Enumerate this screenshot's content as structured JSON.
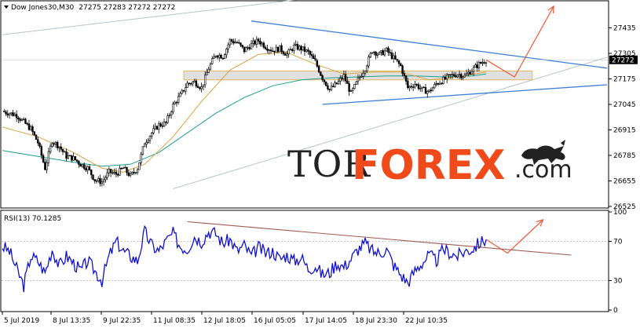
{
  "chart_data": [
    {
      "type": "candlestick",
      "symbol_line": "Dow Jones30,M30",
      "ohlc_readout": "27275 27283 27272 27272",
      "current_price": 27272,
      "ylim": [
        26525,
        27565
      ],
      "y_ticks": [
        "27435",
        "27305",
        "27175",
        "27045",
        "26915",
        "26785",
        "26655",
        "26525"
      ],
      "x_ticks": [
        "5 Jul 2019",
        "8 Jul 13:35",
        "9 Jul 22:35",
        "11 Jul 08:35",
        "12 Jul 18:05",
        "16 Jul 05:05",
        "17 Jul 14:05",
        "18 Jul 23:30",
        "22 Jul 10:35"
      ],
      "price_path": [
        [
          0,
          27010
        ],
        [
          4,
          26990
        ],
        [
          8,
          26920
        ],
        [
          10,
          26850
        ],
        [
          12,
          26720
        ],
        [
          14,
          26860
        ],
        [
          16,
          26830
        ],
        [
          18,
          26780
        ],
        [
          20,
          26770
        ],
        [
          22,
          26740
        ],
        [
          24,
          26720
        ],
        [
          26,
          26660
        ],
        [
          28,
          26650
        ],
        [
          30,
          26700
        ],
        [
          32,
          26690
        ],
        [
          34,
          26720
        ],
        [
          36,
          26680
        ],
        [
          38,
          26720
        ],
        [
          40,
          26850
        ],
        [
          42,
          26900
        ],
        [
          44,
          26940
        ],
        [
          46,
          26950
        ],
        [
          48,
          27040
        ],
        [
          50,
          27090
        ],
        [
          52,
          27150
        ],
        [
          54,
          27160
        ],
        [
          56,
          27130
        ],
        [
          58,
          27230
        ],
        [
          60,
          27300
        ],
        [
          62,
          27290
        ],
        [
          64,
          27370
        ],
        [
          66,
          27360
        ],
        [
          68,
          27320
        ],
        [
          70,
          27350
        ],
        [
          72,
          27370
        ],
        [
          74,
          27340
        ],
        [
          76,
          27320
        ],
        [
          78,
          27330
        ],
        [
          80,
          27300
        ],
        [
          82,
          27340
        ],
        [
          84,
          27330
        ],
        [
          86,
          27310
        ],
        [
          88,
          27260
        ],
        [
          90,
          27180
        ],
        [
          92,
          27120
        ],
        [
          94,
          27150
        ],
        [
          96,
          27190
        ],
        [
          98,
          27100
        ],
        [
          100,
          27170
        ],
        [
          102,
          27230
        ],
        [
          104,
          27320
        ],
        [
          106,
          27300
        ],
        [
          108,
          27320
        ],
        [
          110,
          27280
        ],
        [
          112,
          27240
        ],
        [
          114,
          27130
        ],
        [
          116,
          27150
        ],
        [
          118,
          27120
        ],
        [
          120,
          27110
        ],
        [
          122,
          27150
        ],
        [
          124,
          27170
        ],
        [
          126,
          27190
        ],
        [
          128,
          27200
        ],
        [
          130,
          27190
        ],
        [
          132,
          27220
        ],
        [
          134,
          27250
        ],
        [
          136,
          27272
        ]
      ],
      "ma_fast": [
        [
          0,
          26930
        ],
        [
          10,
          26880
        ],
        [
          20,
          26800
        ],
        [
          28,
          26720
        ],
        [
          34,
          26700
        ],
        [
          40,
          26740
        ],
        [
          48,
          26880
        ],
        [
          56,
          27060
        ],
        [
          64,
          27220
        ],
        [
          72,
          27300
        ],
        [
          80,
          27310
        ],
        [
          88,
          27250
        ],
        [
          96,
          27200
        ],
        [
          104,
          27210
        ],
        [
          112,
          27210
        ],
        [
          120,
          27170
        ],
        [
          128,
          27185
        ],
        [
          136,
          27210
        ]
      ],
      "ma_slow": [
        [
          0,
          26810
        ],
        [
          10,
          26780
        ],
        [
          20,
          26750
        ],
        [
          28,
          26730
        ],
        [
          36,
          26740
        ],
        [
          44,
          26800
        ],
        [
          52,
          26900
        ],
        [
          60,
          27000
        ],
        [
          68,
          27080
        ],
        [
          76,
          27140
        ],
        [
          84,
          27170
        ],
        [
          92,
          27180
        ],
        [
          100,
          27185
        ],
        [
          108,
          27190
        ],
        [
          116,
          27190
        ],
        [
          124,
          27185
        ],
        [
          132,
          27190
        ],
        [
          136,
          27200
        ]
      ],
      "resistance_zone": [
        27170,
        27215
      ],
      "trendline_upper": [
        [
          70,
          27470
        ],
        [
          170,
          27230
        ]
      ],
      "trendline_lower": [
        [
          90,
          27045
        ],
        [
          170,
          27145
        ]
      ],
      "channel_upper": [
        [
          0,
          27400
        ],
        [
          93,
          27600
        ]
      ],
      "channel_lower": [
        [
          48,
          26615
        ],
        [
          170,
          27285
        ]
      ],
      "forecast_path": [
        [
          136,
          27272
        ],
        [
          144,
          27185
        ],
        [
          155,
          27545
        ]
      ]
    },
    {
      "type": "line",
      "indicator_label": "RSI(13) 70.1285",
      "ylim": [
        0,
        100
      ],
      "y_ticks": [
        "100",
        "70",
        "30",
        "0"
      ],
      "levels": [
        70,
        30
      ],
      "values": [
        [
          0,
          65
        ],
        [
          2,
          60
        ],
        [
          4,
          42
        ],
        [
          6,
          25
        ],
        [
          8,
          55
        ],
        [
          10,
          50
        ],
        [
          12,
          38
        ],
        [
          14,
          62
        ],
        [
          16,
          45
        ],
        [
          18,
          55
        ],
        [
          20,
          48
        ],
        [
          22,
          40
        ],
        [
          24,
          50
        ],
        [
          26,
          40
        ],
        [
          28,
          30
        ],
        [
          30,
          55
        ],
        [
          32,
          70
        ],
        [
          34,
          60
        ],
        [
          36,
          55
        ],
        [
          38,
          50
        ],
        [
          40,
          80
        ],
        [
          42,
          66
        ],
        [
          44,
          60
        ],
        [
          46,
          70
        ],
        [
          48,
          78
        ],
        [
          50,
          65
        ],
        [
          52,
          62
        ],
        [
          54,
          75
        ],
        [
          56,
          70
        ],
        [
          58,
          80
        ],
        [
          60,
          78
        ],
        [
          62,
          68
        ],
        [
          64,
          72
        ],
        [
          66,
          60
        ],
        [
          68,
          66
        ],
        [
          70,
          55
        ],
        [
          72,
          64
        ],
        [
          74,
          58
        ],
        [
          76,
          60
        ],
        [
          78,
          52
        ],
        [
          80,
          56
        ],
        [
          82,
          50
        ],
        [
          84,
          54
        ],
        [
          86,
          42
        ],
        [
          88,
          45
        ],
        [
          90,
          36
        ],
        [
          92,
          38
        ],
        [
          94,
          48
        ],
        [
          96,
          44
        ],
        [
          98,
          52
        ],
        [
          100,
          62
        ],
        [
          102,
          68
        ],
        [
          104,
          60
        ],
        [
          106,
          58
        ],
        [
          108,
          62
        ],
        [
          110,
          46
        ],
        [
          112,
          36
        ],
        [
          114,
          28
        ],
        [
          116,
          40
        ],
        [
          118,
          48
        ],
        [
          120,
          56
        ],
        [
          122,
          50
        ],
        [
          124,
          62
        ],
        [
          126,
          58
        ],
        [
          128,
          55
        ],
        [
          130,
          60
        ],
        [
          132,
          62
        ],
        [
          134,
          68
        ],
        [
          136,
          72
        ]
      ],
      "trendline": [
        [
          52,
          90
        ],
        [
          160,
          56
        ]
      ],
      "forecast_path": [
        [
          136,
          72
        ],
        [
          142,
          58
        ],
        [
          152,
          92
        ]
      ]
    }
  ],
  "brand": {
    "tor": "TOR",
    "forex": "FOREX",
    "dotcom": ".com"
  },
  "colors": {
    "up_candle": "#000000",
    "down_candle": "#000000",
    "ma_fast": "#d7a340",
    "ma_slow": "#1a9f8e",
    "trendline": "#3a7fd8",
    "channel": "#b8c4cc",
    "zone_fill": "#d8d8d8",
    "zone_border": "#e3b964",
    "forecast": "#f0583a",
    "rsi_line": "#1010d0",
    "rsi_trendline": "#a05a50",
    "grid": "#c8c8c8"
  },
  "icons": {
    "collapse": "triangle-down-icon",
    "bull": "bull-icon"
  }
}
